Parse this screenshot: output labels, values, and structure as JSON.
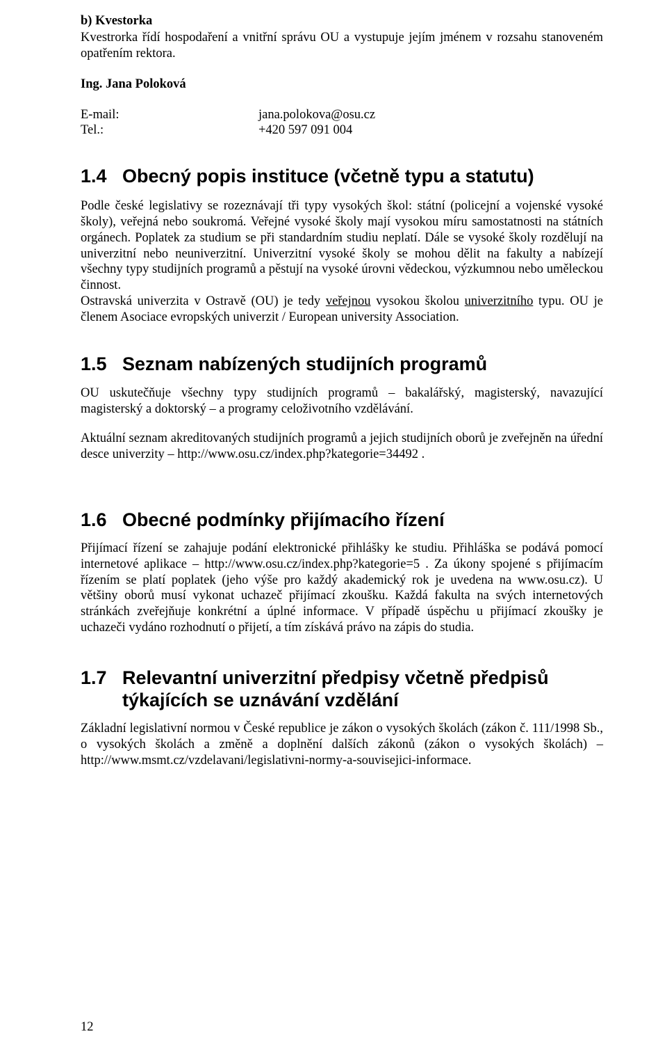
{
  "kvestorka": {
    "heading": "b) Kvestorka",
    "desc": "Kvestrorka řídí hospodaření a vnitřní správu OU a vystupuje jejím jménem v rozsahu stanoveném opatřením rektora.",
    "name": "Ing. Jana Poloková",
    "email_label": "E-mail:",
    "email_value": "jana.polokova@osu.cz",
    "tel_label": "Tel.:",
    "tel_value": "+420 597 091 004"
  },
  "sec14": {
    "num": "1.4",
    "title": "Obecný popis instituce (včetně typu a statutu)",
    "p1a": "Podle české legislativy se rozeznávají tři typy vysokých škol: státní (policejní a vojenské vysoké školy), veřejná nebo soukromá. Veřejné vysoké školy mají vysokou míru samostatnosti na státních orgánech. Poplatek za studium se při standardním studiu neplatí. Dále se vysoké školy rozdělují na univerzitní nebo neuniverzitní. Univerzitní vysoké školy se mohou dělit na fakulty a nabízejí všechny typy studijních programů a pěstují na vysoké úrovni vědeckou, výzkumnou nebo uměleckou činnost.",
    "p1b_pre": "Ostravská univerzita v Ostravě (OU) je tedy ",
    "p1b_u1": "veřejnou",
    "p1b_mid": " vysokou školou ",
    "p1b_u2": "univerzitního",
    "p1b_post": " typu. OU je členem Asociace evropských univerzit / European university Association."
  },
  "sec15": {
    "num": "1.5",
    "title": "Seznam nabízených studijních programů",
    "p1": "OU uskutečňuje všechny typy studijních programů – bakalářský, magisterský, navazující magisterský a doktorský – a programy celoživotního vzdělávání.",
    "p2": "Aktuální seznam akreditovaných studijních programů a jejich studijních oborů je zveřejněn na úřední desce univerzity – http://www.osu.cz/index.php?kategorie=34492 ."
  },
  "sec16": {
    "num": "1.6",
    "title": "Obecné podmínky přijímacího řízení",
    "p1": "Přijímací řízení se zahajuje podání elektronické přihlášky ke studiu. Přihláška se podává pomocí internetové aplikace – http://www.osu.cz/index.php?kategorie=5 . Za úkony spojené s přijímacím řízením se platí poplatek (jeho výše pro každý akademický rok je uvedena na www.osu.cz). U většiny oborů musí vykonat uchazeč přijímací zkoušku. Každá fakulta na svých internetových stránkách zveřejňuje konkrétní a úplné informace. V případě úspěchu u přijímací zkoušky je uchazeči vydáno rozhodnutí o přijetí, a tím získává právo na zápis do studia."
  },
  "sec17": {
    "num": "1.7",
    "title_l1": "Relevantní univerzitní předpisy včetně předpisů",
    "title_l2": "týkajících se uznávání vzdělání",
    "p1": "Základní legislativní normou v České republice je zákon o vysokých školách (zákon č. 111/1998 Sb., o vysokých školách a změně a doplnění dalších zákonů (zákon o vysokých školách) – http://www.msmt.cz/vzdelavani/legislativni-normy-a-souvisejici-informace."
  },
  "page_number": "12"
}
